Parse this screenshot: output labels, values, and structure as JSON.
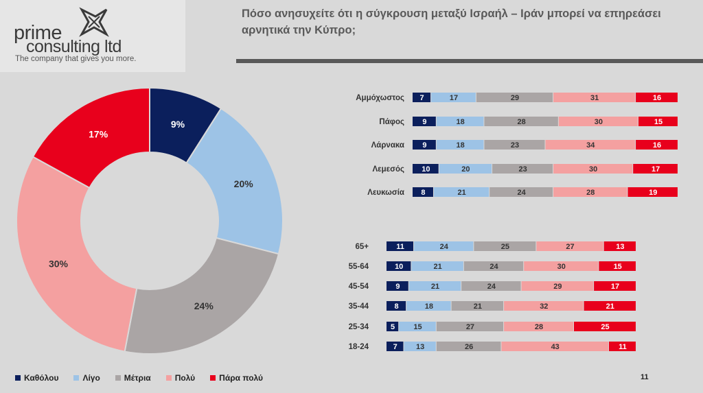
{
  "logo": {
    "line1": "prime",
    "line2": "consulting ltd",
    "tagline": "The company that gives you more."
  },
  "title": "Πόσο ανησυχείτε ότι η σύγκρουση μεταξύ Ισραήλ – Ιράν μπορεί να επηρεάσει αρνητικά την Κύπρο;",
  "page_number": "11",
  "chart_data": [
    {
      "type": "pie",
      "categories": [
        "Καθόλου",
        "Λίγο",
        "Μέτρια",
        "Πολύ",
        "Πάρα πολύ"
      ],
      "values": [
        9,
        20,
        24,
        30,
        17
      ],
      "labels": [
        "9%",
        "20%",
        "24%",
        "30%",
        "17%"
      ],
      "colors": [
        "#0b1f5c",
        "#9dc3e6",
        "#aaa5a5",
        "#f4a0a0",
        "#e8001c"
      ],
      "donut": true
    },
    {
      "type": "bar",
      "stacked": true,
      "orientation": "horizontal",
      "categories": [
        "Αμμόχωστος",
        "Πάφος",
        "Λάρνακα",
        "Λεμεσός",
        "Λευκωσία"
      ],
      "series": [
        {
          "name": "Καθόλου",
          "values": [
            7,
            9,
            9,
            10,
            8
          ]
        },
        {
          "name": "Λίγο",
          "values": [
            17,
            18,
            18,
            20,
            21
          ]
        },
        {
          "name": "Μέτρια",
          "values": [
            29,
            28,
            23,
            23,
            24
          ]
        },
        {
          "name": "Πολύ",
          "values": [
            31,
            30,
            34,
            30,
            28
          ]
        },
        {
          "name": "Πάρα πολύ",
          "values": [
            16,
            15,
            16,
            17,
            19
          ]
        }
      ]
    },
    {
      "type": "bar",
      "stacked": true,
      "orientation": "horizontal",
      "categories": [
        "65+",
        "55-64",
        "45-54",
        "35-44",
        "25-34",
        "18-24"
      ],
      "series": [
        {
          "name": "Καθόλου",
          "values": [
            11,
            10,
            9,
            8,
            5,
            7
          ]
        },
        {
          "name": "Λίγο",
          "values": [
            24,
            21,
            21,
            18,
            15,
            13
          ]
        },
        {
          "name": "Μέτρια",
          "values": [
            25,
            24,
            24,
            21,
            27,
            26
          ]
        },
        {
          "name": "Πολύ",
          "values": [
            27,
            30,
            29,
            32,
            28,
            43
          ]
        },
        {
          "name": "Πάρα πολύ",
          "values": [
            13,
            15,
            17,
            21,
            25,
            11
          ]
        }
      ]
    }
  ],
  "legend": {
    "items": [
      {
        "label": "Καθόλου",
        "color": "#0b1f5c"
      },
      {
        "label": "Λίγο",
        "color": "#9dc3e6"
      },
      {
        "label": "Μέτρια",
        "color": "#aaa5a5"
      },
      {
        "label": "Πολύ",
        "color": "#f4a0a0"
      },
      {
        "label": "Πάρα πολύ",
        "color": "#e8001c"
      }
    ]
  }
}
